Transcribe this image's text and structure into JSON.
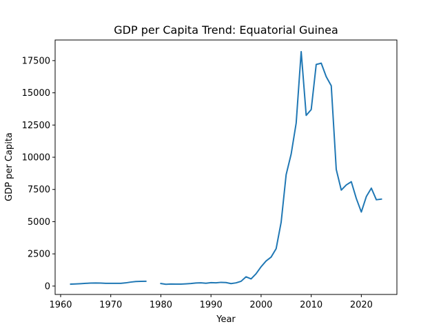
{
  "chart_data": {
    "type": "line",
    "title": "GDP per Capita Trend: Equatorial Guinea",
    "xlabel": "Year",
    "ylabel": "GDP per Capita",
    "xlim": [
      1958.9,
      2027.1
    ],
    "ylim": [
      -650,
      19100
    ],
    "xticks": [
      1960,
      1970,
      1980,
      1990,
      2000,
      2010,
      2020
    ],
    "yticks": [
      0,
      2500,
      5000,
      7500,
      10000,
      12500,
      15000,
      17500
    ],
    "grid": false,
    "legend": "none",
    "color": "#1f77b4",
    "series": [
      {
        "segments": [
          [
            [
              1962,
              150
            ],
            [
              1963,
              165
            ],
            [
              1964,
              185
            ],
            [
              1965,
              210
            ],
            [
              1966,
              230
            ],
            [
              1967,
              240
            ],
            [
              1968,
              235
            ],
            [
              1969,
              215
            ],
            [
              1970,
              210
            ],
            [
              1971,
              210
            ],
            [
              1972,
              215
            ],
            [
              1973,
              250
            ],
            [
              1974,
              310
            ],
            [
              1975,
              355
            ],
            [
              1976,
              365
            ],
            [
              1977,
              375
            ]
          ],
          [
            [
              1980,
              200
            ],
            [
              1981,
              140
            ],
            [
              1982,
              160
            ],
            [
              1983,
              150
            ],
            [
              1984,
              155
            ],
            [
              1985,
              175
            ],
            [
              1986,
              200
            ],
            [
              1987,
              240
            ],
            [
              1988,
              255
            ],
            [
              1989,
              220
            ],
            [
              1990,
              265
            ],
            [
              1991,
              255
            ],
            [
              1992,
              290
            ],
            [
              1993,
              275
            ],
            [
              1994,
              195
            ],
            [
              1995,
              250
            ],
            [
              1996,
              370
            ],
            [
              1997,
              720
            ],
            [
              1998,
              560
            ],
            [
              1999,
              960
            ],
            [
              2000,
              1500
            ],
            [
              2001,
              1950
            ],
            [
              2002,
              2250
            ],
            [
              2003,
              2900
            ],
            [
              2004,
              4950
            ],
            [
              2005,
              8650
            ],
            [
              2006,
              10250
            ],
            [
              2007,
              12650
            ],
            [
              2008,
              18200
            ],
            [
              2009,
              13250
            ],
            [
              2010,
              13700
            ],
            [
              2011,
              17200
            ],
            [
              2012,
              17300
            ],
            [
              2013,
              16250
            ],
            [
              2014,
              15550
            ],
            [
              2015,
              9050
            ],
            [
              2016,
              7450
            ],
            [
              2017,
              7850
            ],
            [
              2018,
              8100
            ],
            [
              2019,
              6800
            ],
            [
              2020,
              5750
            ],
            [
              2021,
              6950
            ],
            [
              2022,
              7600
            ],
            [
              2023,
              6700
            ],
            [
              2024,
              6750
            ]
          ]
        ]
      }
    ]
  }
}
